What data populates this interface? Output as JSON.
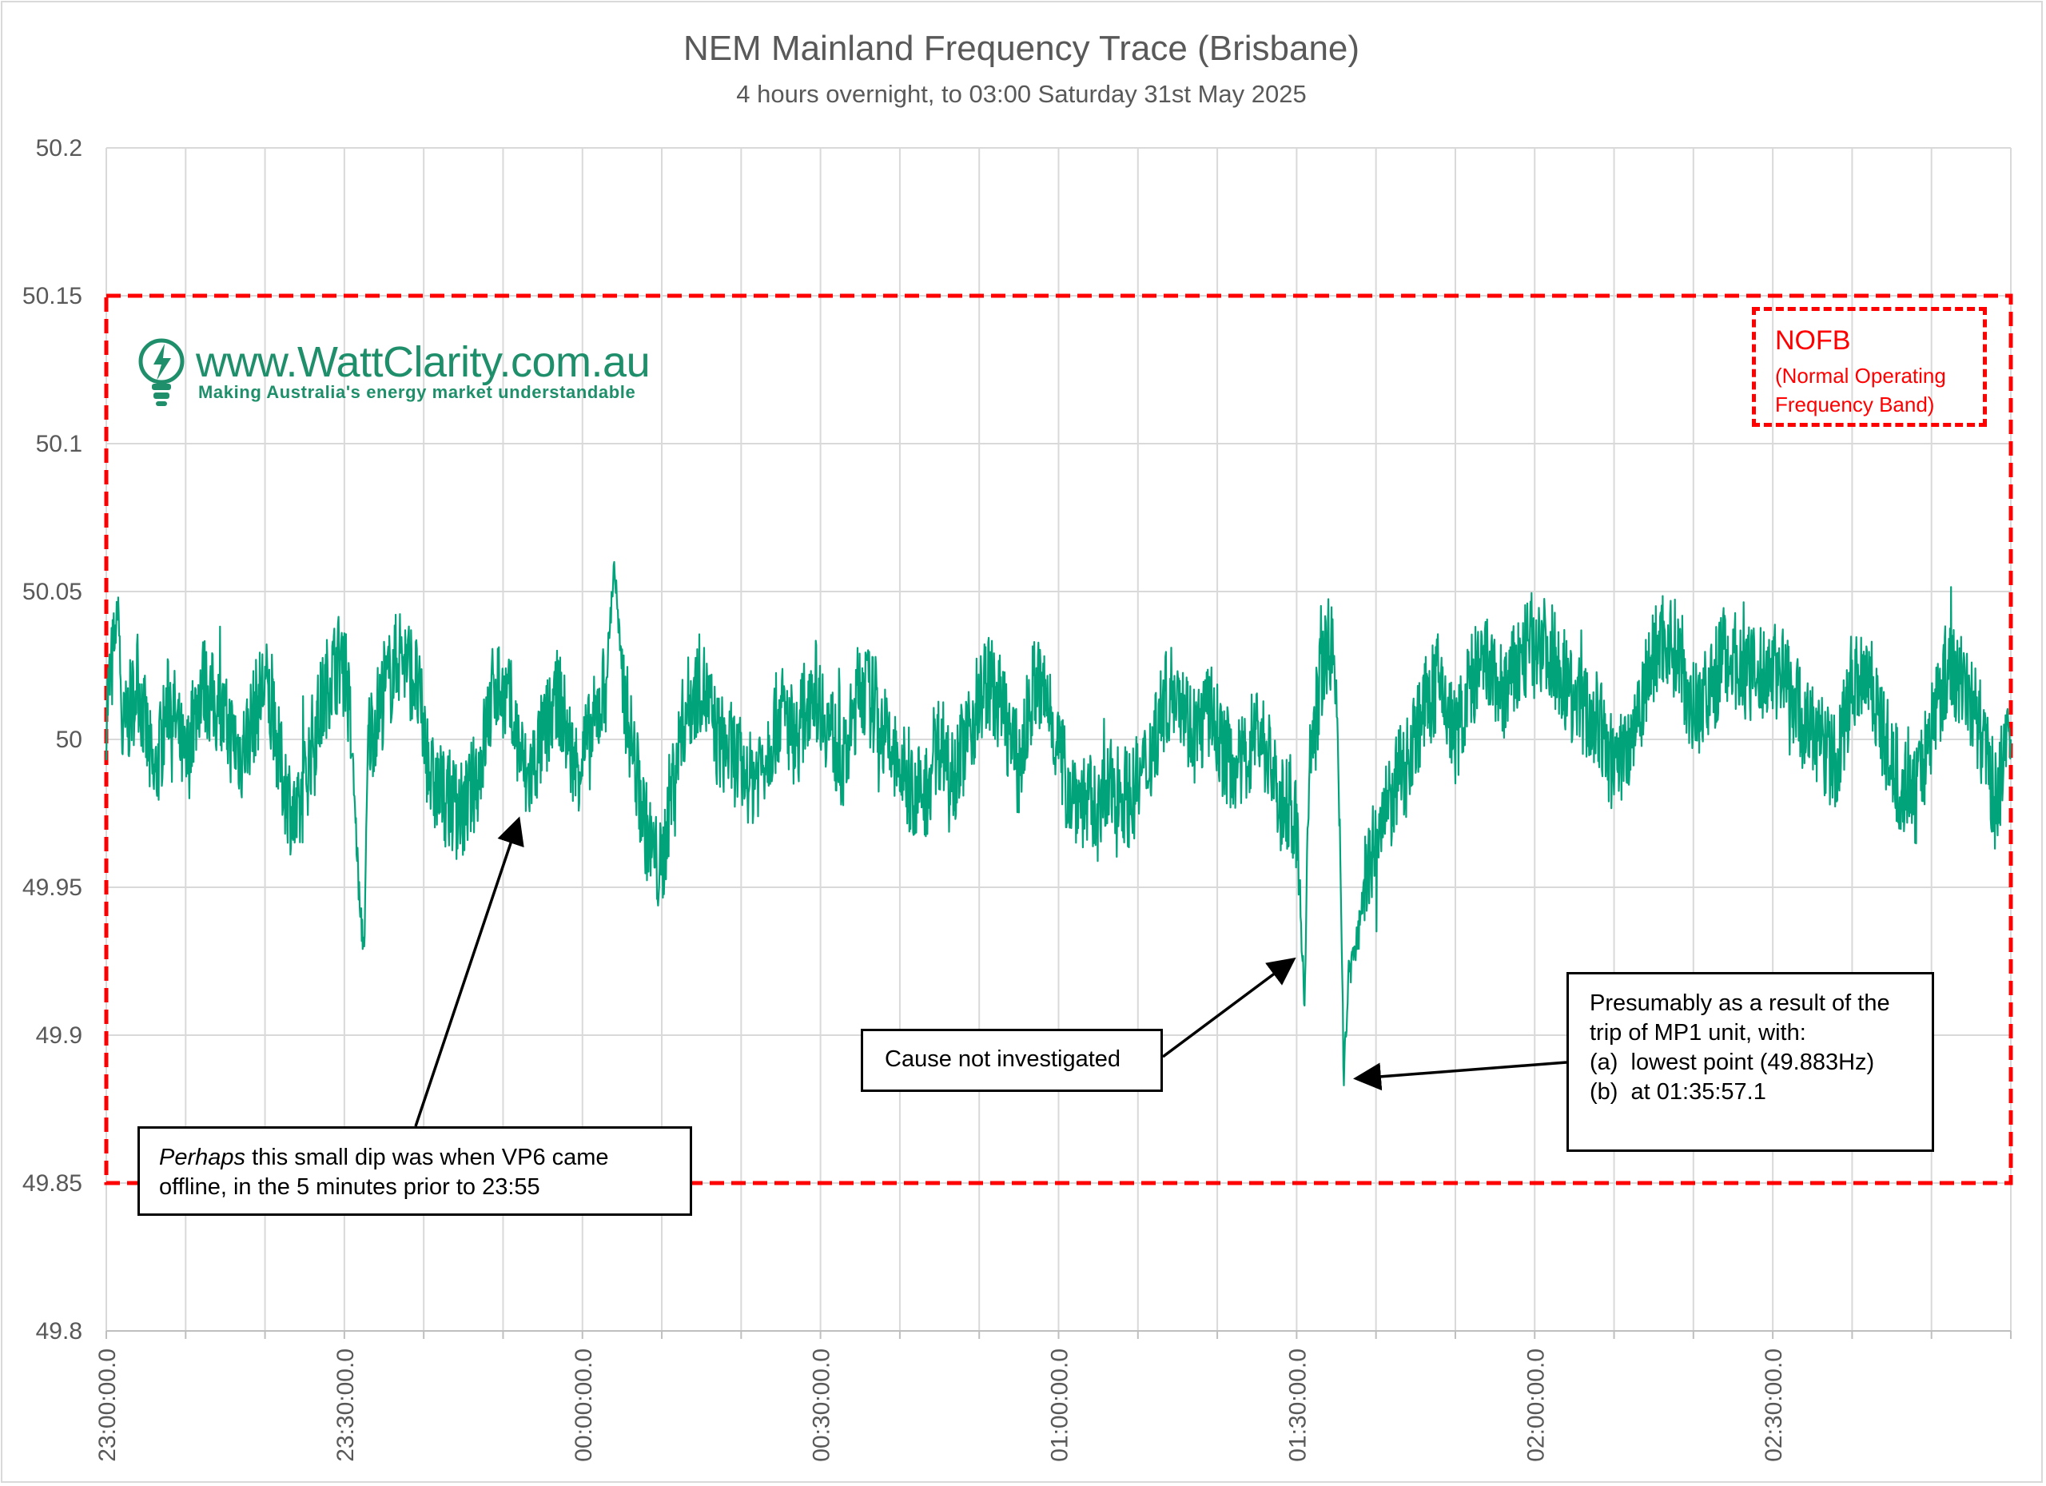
{
  "chart_data": {
    "type": "line",
    "title": "NEM Mainland Frequency Trace (Brisbane)",
    "subtitle": "4 hours overnight, to 03:00 Saturday 31st May 2025",
    "xlabel": "",
    "ylabel": "",
    "ylim": [
      49.8,
      50.2
    ],
    "xlim": [
      "23:00:00.0",
      "03:00:00.0"
    ],
    "y_ticks": [
      "50.2",
      "50.15",
      "50.1",
      "50.05",
      "50",
      "49.95",
      "49.9",
      "49.85",
      "49.8"
    ],
    "x_ticks": [
      "23:00:00.0",
      "23:30:00.0",
      "00:00:00.0",
      "00:30:00.0",
      "01:00:00.0",
      "01:30:00.0",
      "02:00:00.0",
      "02:30:00.0"
    ],
    "grid": true,
    "legend": "none",
    "series": [
      {
        "color": "#00a37a",
        "points": [
          [
            "23:00:00.0",
            50.01
          ],
          [
            "23:01:00.0",
            50.03
          ],
          [
            "23:01:30.0",
            50.048
          ],
          [
            "23:02:00.0",
            50.0
          ],
          [
            "23:04:00.0",
            50.02
          ],
          [
            "23:06:00.0",
            49.985
          ],
          [
            "23:08:00.0",
            50.015
          ],
          [
            "23:10:00.0",
            49.99
          ],
          [
            "23:12:00.0",
            50.02
          ],
          [
            "23:14:00.0",
            50.01
          ],
          [
            "23:17:00.0",
            49.995
          ],
          [
            "23:20:00.0",
            50.02
          ],
          [
            "23:22:00.0",
            49.99
          ],
          [
            "23:24:00.0",
            49.97
          ],
          [
            "23:26:00.0",
            50.0
          ],
          [
            "23:28:00.0",
            50.02
          ],
          [
            "23:30:00.0",
            50.03
          ],
          [
            "23:31:00.0",
            49.995
          ],
          [
            "23:32:00.0",
            49.94
          ],
          [
            "23:32:30.0",
            49.93
          ],
          [
            "23:33:00.0",
            50.0
          ],
          [
            "23:35:00.0",
            50.015
          ],
          [
            "23:37:00.0",
            50.03
          ],
          [
            "23:39:00.0",
            50.02
          ],
          [
            "23:41:00.0",
            49.985
          ],
          [
            "23:43:00.0",
            49.98
          ],
          [
            "23:45:00.0",
            49.975
          ],
          [
            "23:47:00.0",
            49.99
          ],
          [
            "23:49:00.0",
            50.02
          ],
          [
            "23:51:00.0",
            50.01
          ],
          [
            "23:53:00.0",
            49.985
          ],
          [
            "23:55:00.0",
            50.0
          ],
          [
            "23:57:00.0",
            50.015
          ],
          [
            "23:59:00.0",
            49.99
          ],
          [
            "00:01:00.0",
            50.0
          ],
          [
            "00:03:00.0",
            50.02
          ],
          [
            "00:04:00.0",
            50.06
          ],
          [
            "00:05:00.0",
            50.02
          ],
          [
            "00:07:00.0",
            49.985
          ],
          [
            "00:08:00.0",
            49.97
          ],
          [
            "00:09:00.0",
            49.96
          ],
          [
            "00:10:00.0",
            49.955
          ],
          [
            "00:11:00.0",
            49.98
          ],
          [
            "00:13:00.0",
            50.01
          ],
          [
            "00:15:00.0",
            50.02
          ],
          [
            "00:17:00.0",
            50.0
          ],
          [
            "00:19:00.0",
            49.995
          ],
          [
            "00:21:00.0",
            49.985
          ],
          [
            "00:23:00.0",
            49.995
          ],
          [
            "00:25:00.0",
            50.01
          ],
          [
            "00:27:00.0",
            50.0
          ],
          [
            "00:29:00.0",
            50.02
          ],
          [
            "00:31:00.0",
            50.005
          ],
          [
            "00:33:00.0",
            49.99
          ],
          [
            "00:35:00.0",
            50.02
          ],
          [
            "00:37:00.0",
            50.01
          ],
          [
            "00:39:00.0",
            49.995
          ],
          [
            "00:41:00.0",
            49.985
          ],
          [
            "00:43:00.0",
            49.98
          ],
          [
            "00:45:00.0",
            50.0
          ],
          [
            "00:47:00.0",
            49.99
          ],
          [
            "00:49:00.0",
            50.005
          ],
          [
            "00:51:00.0",
            50.02
          ],
          [
            "00:53:00.0",
            50.01
          ],
          [
            "00:55:00.0",
            49.99
          ],
          [
            "00:57:00.0",
            50.02
          ],
          [
            "00:59:00.0",
            50.01
          ],
          [
            "01:01:00.0",
            49.985
          ],
          [
            "01:03:00.0",
            49.98
          ],
          [
            "01:05:00.0",
            49.975
          ],
          [
            "01:07:00.0",
            49.985
          ],
          [
            "01:09:00.0",
            49.98
          ],
          [
            "01:11:00.0",
            49.99
          ],
          [
            "01:13:00.0",
            50.01
          ],
          [
            "01:15:00.0",
            50.02
          ],
          [
            "01:17:00.0",
            50.0
          ],
          [
            "01:19:00.0",
            50.01
          ],
          [
            "01:21:00.0",
            49.995
          ],
          [
            "01:23:00.0",
            49.99
          ],
          [
            "01:25:00.0",
            50.005
          ],
          [
            "01:27:00.0",
            49.99
          ],
          [
            "01:28:00.0",
            49.975
          ],
          [
            "01:29:00.0",
            49.98
          ],
          [
            "01:30:00.0",
            49.97
          ],
          [
            "01:30:30.0",
            49.94
          ],
          [
            "01:31:00.0",
            49.91
          ],
          [
            "01:31:30.0",
            49.985
          ],
          [
            "01:33:00.0",
            50.02
          ],
          [
            "01:34:00.0",
            50.035
          ],
          [
            "01:35:00.0",
            50.02
          ],
          [
            "01:35:30.0",
            49.96
          ],
          [
            "01:35:57.1",
            49.883
          ],
          [
            "01:36:30.0",
            49.92
          ],
          [
            "01:37:30.0",
            49.93
          ],
          [
            "01:38:30.0",
            49.95
          ],
          [
            "01:40:00.0",
            49.965
          ],
          [
            "01:42:00.0",
            49.98
          ],
          [
            "01:44:00.0",
            49.995
          ],
          [
            "01:46:00.0",
            50.01
          ],
          [
            "01:48:00.0",
            50.02
          ],
          [
            "01:50:00.0",
            50.0
          ],
          [
            "01:52:00.0",
            50.02
          ],
          [
            "01:54:00.0",
            50.025
          ],
          [
            "01:56:00.0",
            50.015
          ],
          [
            "01:58:00.0",
            50.025
          ],
          [
            "02:00:00.0",
            50.035
          ],
          [
            "02:02:00.0",
            50.03
          ],
          [
            "02:04:00.0",
            50.02
          ],
          [
            "02:06:00.0",
            50.01
          ],
          [
            "02:08:00.0",
            50.005
          ],
          [
            "02:10:00.0",
            49.99
          ],
          [
            "02:12:00.0",
            50.0
          ],
          [
            "02:14:00.0",
            50.02
          ],
          [
            "02:16:00.0",
            50.035
          ],
          [
            "02:18:00.0",
            50.03
          ],
          [
            "02:20:00.0",
            50.01
          ],
          [
            "02:22:00.0",
            50.015
          ],
          [
            "02:24:00.0",
            50.03
          ],
          [
            "02:26:00.0",
            50.025
          ],
          [
            "02:28:00.0",
            50.02
          ],
          [
            "02:30:00.0",
            50.025
          ],
          [
            "02:32:00.0",
            50.02
          ],
          [
            "02:34:00.0",
            50.005
          ],
          [
            "02:36:00.0",
            50.0
          ],
          [
            "02:38:00.0",
            49.99
          ],
          [
            "02:40:00.0",
            50.02
          ],
          [
            "02:42:00.0",
            50.025
          ],
          [
            "02:44:00.0",
            50.0
          ],
          [
            "02:46:00.0",
            49.985
          ],
          [
            "02:48:00.0",
            49.98
          ],
          [
            "02:50:00.0",
            50.005
          ],
          [
            "02:52:00.0",
            50.025
          ],
          [
            "02:54:00.0",
            50.02
          ],
          [
            "02:56:00.0",
            50.005
          ],
          [
            "02:58:00.0",
            49.98
          ],
          [
            "03:00:00.0",
            50.0
          ]
        ]
      }
    ],
    "band": {
      "upper": 50.15,
      "lower": 49.85,
      "color": "#ff0000"
    }
  },
  "nofb": {
    "title": "NOFB",
    "line1": "(Normal Operating",
    "line2": "Frequency Band)"
  },
  "logo": {
    "text": "www.WattClarity.com.au",
    "tagline": "Making Australia's energy market understandable"
  },
  "annotations": {
    "vp6": {
      "line1_em": "Perhaps",
      "line1_rest": " this small dip was when VP6 came",
      "line2": "offline, in the 5 minutes prior to 23:55"
    },
    "cause": {
      "text": "Cause not investigated"
    },
    "mp1": {
      "line1": "Presumably as a result of the",
      "line2": "trip of MP1 unit, with:",
      "line3": "(a)  lowest point (49.883Hz)",
      "line4": "(b)  at 01:35:57.1"
    }
  }
}
